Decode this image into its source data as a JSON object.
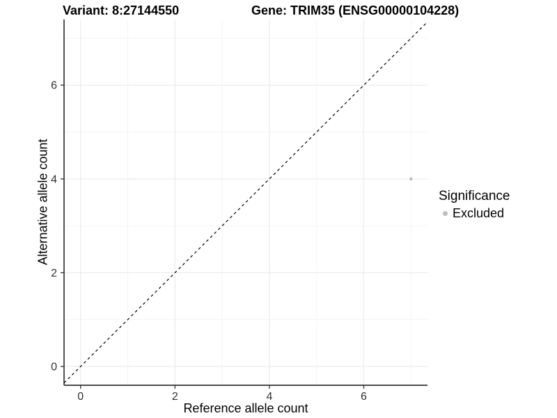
{
  "header": {
    "variant_title": "Variant: 8:27144550",
    "gene_title": "Gene: TRIM35 (ENSG00000104228)"
  },
  "legend": {
    "title": "Significance",
    "items": [
      {
        "label": "Excluded",
        "color": "#bdbdbd"
      }
    ]
  },
  "colors": {
    "background": "#ffffff",
    "grid_major": "#ebebeb",
    "grid_minor": "#f4f4f4",
    "axis_line": "#333333",
    "tick_mark": "#333333",
    "tick_label": "#303030",
    "reference_line": "#000000",
    "point": "#bdbdbd"
  },
  "chart_data": {
    "type": "scatter",
    "title": "Variant: 8:27144550 — Gene: TRIM35 (ENSG00000104228)",
    "xlabel": "Reference allele count",
    "ylabel": "Alternative allele count",
    "xlim": [
      -0.35,
      7.35
    ],
    "ylim": [
      -0.4,
      7.4
    ],
    "xticks": [
      0,
      2,
      4,
      6
    ],
    "yticks": [
      0,
      2,
      4,
      6
    ],
    "x_minor_ticks": [
      1,
      3,
      5,
      7
    ],
    "y_minor_ticks": [
      1,
      3,
      5,
      7
    ],
    "grid": true,
    "legend_title": "Significance",
    "legend_position": "right",
    "reference_line": {
      "equation": "y = x",
      "style": "dashed",
      "color": "#000000"
    },
    "series": [
      {
        "name": "Excluded",
        "color": "#bdbdbd",
        "point_radius": 2.2,
        "points": [
          {
            "x": 7,
            "y": 4
          }
        ]
      }
    ]
  }
}
